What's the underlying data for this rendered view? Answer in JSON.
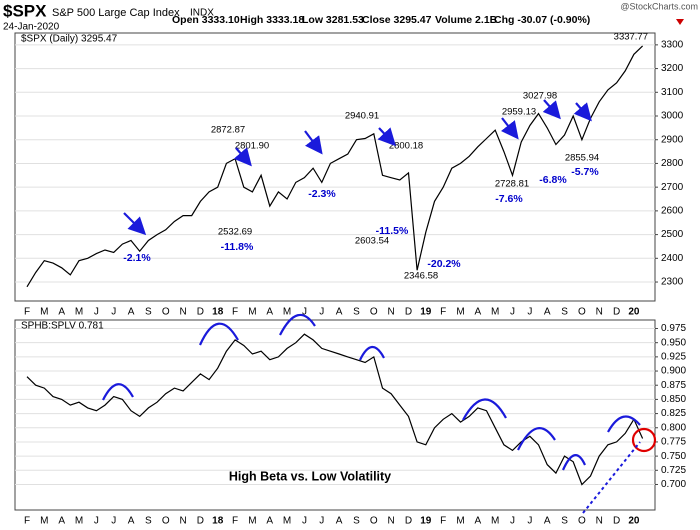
{
  "header": {
    "symbol": "$SPX",
    "name": "S&P 500 Large Cap Index",
    "exchange": "INDX",
    "date": "24-Jan-2020",
    "quote": [
      "Open 3333.10",
      "High 3333.18",
      "Low 3281.53",
      "Close 3295.47",
      "Volume 2.1B",
      "Chg -30.07 (-0.90%)"
    ],
    "credit": "@StockCharts.com"
  },
  "chart_data": [
    {
      "type": "line",
      "categories": [
        "F",
        null,
        "M",
        null,
        "A",
        null,
        "M",
        null,
        "J",
        null,
        "J",
        null,
        "A",
        null,
        "S",
        null,
        "O",
        null,
        "N",
        null,
        "D",
        null,
        "18",
        null,
        "F",
        null,
        "M",
        null,
        "A",
        null,
        "M",
        null,
        "J",
        null,
        "J",
        null,
        "A",
        null,
        "S",
        null,
        "O",
        null,
        "N",
        null,
        "D",
        null,
        "19",
        null,
        "F",
        null,
        "M",
        null,
        "A",
        null,
        "M",
        null,
        "J",
        null,
        "J",
        null,
        "A",
        null,
        "S",
        null,
        "O",
        null,
        "N",
        null,
        "D",
        null,
        "20",
        null
      ],
      "series": [
        {
          "name": "$SPX (Daily) 3295.47",
          "color": "#000000",
          "values": [
            2280,
            2340,
            2390,
            2380,
            2360,
            2330,
            2390,
            2400,
            2420,
            2435,
            2425,
            2460,
            2475,
            2430,
            2475,
            2500,
            2520,
            2555,
            2580,
            2580,
            2640,
            2680,
            2700,
            2800,
            2820,
            2700,
            2680,
            2750,
            2620,
            2680,
            2650,
            2720,
            2740,
            2780,
            2720,
            2800,
            2820,
            2840,
            2900,
            2905,
            2925,
            2750,
            2740,
            2730,
            2760,
            2350,
            2510,
            2640,
            2700,
            2780,
            2800,
            2830,
            2870,
            2905,
            2940,
            2850,
            2750,
            2890,
            2960,
            3010,
            2950,
            2880,
            2920,
            3000,
            2900,
            2990,
            3060,
            3110,
            3140,
            3190,
            3260,
            3295.47
          ]
        }
      ],
      "ylim": [
        2220,
        3350
      ],
      "yticks": [
        2300,
        2400,
        2500,
        2600,
        2700,
        2800,
        2900,
        3000,
        3100,
        3200,
        3300
      ],
      "grid": true,
      "annotation_color": "#0000cc",
      "annotations": [
        "3337.77",
        "2872.87",
        "2801.90",
        "2532.69",
        "2940.91",
        "2800.18",
        "2603.54",
        "2346.58",
        "2959.13",
        "2728.81",
        "3027.98",
        "2855.94"
      ],
      "drawdowns": [
        "-2.1%",
        "-11.8%",
        "-2.3%",
        "-11.5%",
        "-20.2%",
        "-7.6%",
        "-6.8%",
        "-5.7%"
      ]
    },
    {
      "type": "line",
      "categories": [
        "F",
        null,
        "M",
        null,
        "A",
        null,
        "M",
        null,
        "J",
        null,
        "J",
        null,
        "A",
        null,
        "S",
        null,
        "O",
        null,
        "N",
        null,
        "D",
        null,
        "18",
        null,
        "F",
        null,
        "M",
        null,
        "A",
        null,
        "M",
        null,
        "J",
        null,
        "J",
        null,
        "A",
        null,
        "S",
        null,
        "O",
        null,
        "N",
        null,
        "D",
        null,
        "19",
        null,
        "F",
        null,
        "M",
        null,
        "A",
        null,
        "M",
        null,
        "J",
        null,
        "J",
        null,
        "A",
        null,
        "S",
        null,
        "O",
        null,
        "N",
        null,
        "D",
        null,
        "20",
        null
      ],
      "series": [
        {
          "name": "SPHB:SPLV 0.781",
          "color": "#000000",
          "values": [
            0.89,
            0.875,
            0.87,
            0.855,
            0.85,
            0.84,
            0.845,
            0.835,
            0.83,
            0.84,
            0.855,
            0.85,
            0.83,
            0.82,
            0.835,
            0.845,
            0.86,
            0.87,
            0.865,
            0.88,
            0.895,
            0.885,
            0.905,
            0.935,
            0.955,
            0.945,
            0.93,
            0.935,
            0.92,
            0.925,
            0.94,
            0.95,
            0.965,
            0.955,
            0.94,
            0.935,
            0.93,
            0.925,
            0.92,
            0.915,
            0.925,
            0.87,
            0.86,
            0.84,
            0.82,
            0.775,
            0.77,
            0.8,
            0.815,
            0.825,
            0.81,
            0.82,
            0.835,
            0.83,
            0.8,
            0.77,
            0.76,
            0.775,
            0.785,
            0.77,
            0.735,
            0.72,
            0.75,
            0.74,
            0.7,
            0.715,
            0.75,
            0.77,
            0.775,
            0.79,
            0.815,
            0.781
          ]
        }
      ],
      "ylim": [
        0.655,
        0.99
      ],
      "yticks": [
        {
          "value": 0.7,
          "label": "0.700"
        },
        0.725,
        {
          "value": 0.75,
          "label": "0.750"
        },
        0.775,
        {
          "value": 0.8,
          "label": "0.800"
        },
        0.825,
        {
          "value": 0.85,
          "label": "0.850"
        },
        0.875,
        {
          "value": 0.9,
          "label": "0.900"
        },
        0.925,
        {
          "value": 0.95,
          "label": "0.950"
        },
        0.975
      ],
      "grid": true,
      "annotation": "High Beta vs. Low Volatility"
    }
  ]
}
